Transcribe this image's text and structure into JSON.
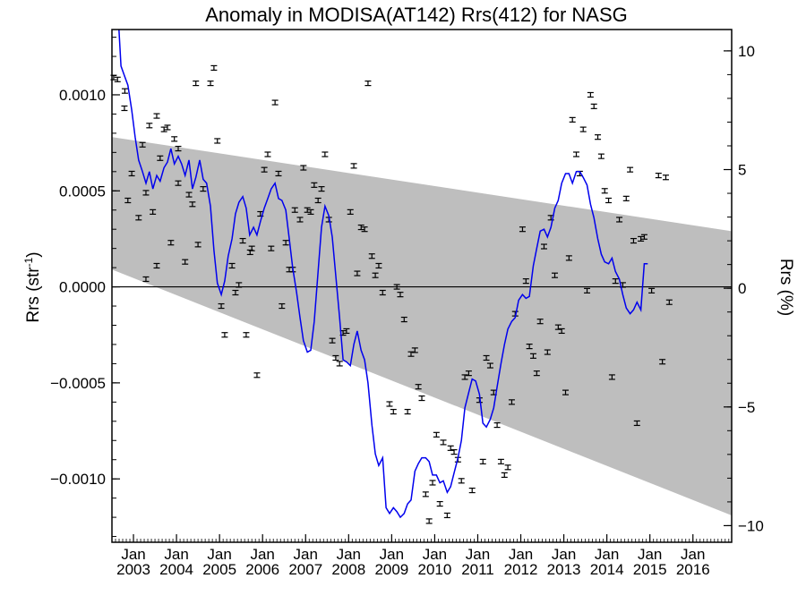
{
  "chart_data": {
    "type": "scatter",
    "title": "Anomaly in MODISA(AT142) Rrs(412) for NASG",
    "ylabel_left": "Rrs (str",
    "ylabel_left_sup": "-1",
    "ylabel_left_close": ")",
    "ylabel_right": "Rrs (%)",
    "x_range": [
      2002.5,
      2016.9
    ],
    "y_range": [
      -0.00133,
      0.00134
    ],
    "y_right_range": [
      -10.7,
      10.9
    ],
    "y_ticks": [
      {
        "value": 0.001,
        "label": "0.0010"
      },
      {
        "value": 0.0005,
        "label": "0.0005"
      },
      {
        "value": 0.0,
        "label": "0.0000"
      },
      {
        "value": -0.0005,
        "label": "−0.0005"
      },
      {
        "value": -0.001,
        "label": "−0.0010"
      }
    ],
    "y_right_ticks": [
      {
        "value": 10,
        "label": "10"
      },
      {
        "value": 5,
        "label": "5"
      },
      {
        "value": 0,
        "label": "0"
      },
      {
        "value": -5,
        "label": "−5"
      },
      {
        "value": -10,
        "label": "−10"
      }
    ],
    "x_major_ticks": [
      {
        "value": 2003,
        "month": "Jan",
        "year": "2003"
      },
      {
        "value": 2004,
        "month": "Jan",
        "year": "2004"
      },
      {
        "value": 2005,
        "month": "Jan",
        "year": "2005"
      },
      {
        "value": 2006,
        "month": "Jan",
        "year": "2006"
      },
      {
        "value": 2007,
        "month": "Jan",
        "year": "2007"
      },
      {
        "value": 2008,
        "month": "Jan",
        "year": "2008"
      },
      {
        "value": 2009,
        "month": "Jan",
        "year": "2009"
      },
      {
        "value": 2010,
        "month": "Jan",
        "year": "2010"
      },
      {
        "value": 2011,
        "month": "Jan",
        "year": "2011"
      },
      {
        "value": 2012,
        "month": "Jan",
        "year": "2012"
      },
      {
        "value": 2013,
        "month": "Jan",
        "year": "2013"
      },
      {
        "value": 2014,
        "month": "Jan",
        "year": "2014"
      },
      {
        "value": 2015,
        "month": "Jan",
        "year": "2015"
      },
      {
        "value": 2016,
        "month": "Jan",
        "year": "2016"
      }
    ],
    "band": {
      "upper": [
        [
          2002.5,
          0.00078
        ],
        [
          2016.9,
          0.00029
        ]
      ],
      "lower": [
        [
          2002.5,
          9e-05
        ],
        [
          2016.9,
          -0.00119
        ]
      ]
    },
    "zero_line": 0,
    "points": [
      [
        2002.54,
        0.00109
      ],
      [
        2002.63,
        0.00108
      ],
      [
        2002.79,
        0.00093
      ],
      [
        2002.8,
        0.00102
      ],
      [
        2002.87,
        0.00045
      ],
      [
        2002.96,
        0.00059
      ],
      [
        2003.12,
        0.00036
      ],
      [
        2003.21,
        0.00074
      ],
      [
        2003.29,
        0.00049
      ],
      [
        2003.29,
        4e-05
      ],
      [
        2003.37,
        0.00084
      ],
      [
        2003.45,
        0.00039
      ],
      [
        2003.54,
        0.00089
      ],
      [
        2003.54,
        0.00011
      ],
      [
        2003.62,
        0.00067
      ],
      [
        2003.71,
        0.00082
      ],
      [
        2003.79,
        0.00083
      ],
      [
        2003.87,
        0.00023
      ],
      [
        2003.95,
        0.00077
      ],
      [
        2004.04,
        0.00072
      ],
      [
        2004.04,
        0.00054
      ],
      [
        2004.2,
        0.00013
      ],
      [
        2004.29,
        0.00048
      ],
      [
        2004.37,
        0.00043
      ],
      [
        2004.45,
        0.00106
      ],
      [
        2004.5,
        0.00022
      ],
      [
        2004.62,
        0.00051
      ],
      [
        2004.79,
        0.00106
      ],
      [
        2004.87,
        0.00114
      ],
      [
        2004.95,
        0.00076
      ],
      [
        2005.04,
        -0.0001
      ],
      [
        2005.12,
        -0.00025
      ],
      [
        2005.29,
        0.00011
      ],
      [
        2005.37,
        -3e-05
      ],
      [
        2005.45,
        1e-05
      ],
      [
        2005.54,
        0.00024
      ],
      [
        2005.62,
        -0.00025
      ],
      [
        2005.71,
        0.00018
      ],
      [
        2005.75,
        0.0002
      ],
      [
        2005.87,
        -0.00046
      ],
      [
        2005.95,
        0.00038
      ],
      [
        2006.04,
        0.00061
      ],
      [
        2006.12,
        0.00069
      ],
      [
        2006.2,
        0.0002
      ],
      [
        2006.29,
        0.00096
      ],
      [
        2006.37,
        0.00059
      ],
      [
        2006.45,
        -0.0001
      ],
      [
        2006.54,
        0.00023
      ],
      [
        2006.62,
        9e-05
      ],
      [
        2006.7,
        9e-05
      ],
      [
        2006.75,
        0.0004
      ],
      [
        2006.87,
        0.00035
      ],
      [
        2006.95,
        0.00062
      ],
      [
        2007.04,
        0.0004
      ],
      [
        2007.12,
        0.00039
      ],
      [
        2007.2,
        0.00053
      ],
      [
        2007.29,
        0.00045
      ],
      [
        2007.37,
        0.00051
      ],
      [
        2007.45,
        0.00069
      ],
      [
        2007.54,
        0.00035
      ],
      [
        2007.62,
        -0.00028
      ],
      [
        2007.7,
        -0.00037
      ],
      [
        2007.79,
        -0.0004
      ],
      [
        2007.87,
        -0.00024
      ],
      [
        2007.95,
        -0.00023
      ],
      [
        2008.04,
        0.00039
      ],
      [
        2008.12,
        0.00063
      ],
      [
        2008.2,
        7e-05
      ],
      [
        2008.29,
        0.00031
      ],
      [
        2008.37,
        0.0003
      ],
      [
        2008.45,
        0.00106
      ],
      [
        2008.54,
        0.00016
      ],
      [
        2008.62,
        6e-05
      ],
      [
        2008.7,
        0.00011
      ],
      [
        2008.79,
        -3e-05
      ],
      [
        2008.95,
        -0.00061
      ],
      [
        2009.04,
        -0.00065
      ],
      [
        2009.12,
        0.0
      ],
      [
        2009.2,
        -4e-05
      ],
      [
        2009.29,
        -0.00017
      ],
      [
        2009.37,
        -0.00065
      ],
      [
        2009.45,
        -0.00035
      ],
      [
        2009.54,
        -0.00033
      ],
      [
        2009.62,
        -0.00052
      ],
      [
        2009.7,
        -0.00058
      ],
      [
        2009.79,
        -0.00108
      ],
      [
        2009.87,
        -0.00122
      ],
      [
        2009.95,
        -0.00102
      ],
      [
        2010.04,
        -0.00077
      ],
      [
        2010.12,
        -0.00113
      ],
      [
        2010.2,
        -0.00081
      ],
      [
        2010.29,
        -0.00119
      ],
      [
        2010.37,
        -0.00084
      ],
      [
        2010.45,
        -0.00086
      ],
      [
        2010.54,
        -0.0009
      ],
      [
        2010.62,
        -0.00101
      ],
      [
        2010.7,
        -0.00047
      ],
      [
        2010.79,
        -0.00045
      ],
      [
        2010.87,
        -0.00106
      ],
      [
        2011.04,
        -0.00059
      ],
      [
        2011.12,
        -0.00091
      ],
      [
        2011.2,
        -0.00037
      ],
      [
        2011.29,
        -0.00041
      ],
      [
        2011.37,
        -0.00055
      ],
      [
        2011.45,
        -0.00072
      ],
      [
        2011.54,
        -0.00091
      ],
      [
        2011.62,
        -0.00098
      ],
      [
        2011.7,
        -0.00094
      ],
      [
        2011.79,
        -0.0006
      ],
      [
        2011.87,
        -0.00014
      ],
      [
        2012.04,
        0.0003
      ],
      [
        2012.12,
        3e-05
      ],
      [
        2012.2,
        -0.00031
      ],
      [
        2012.29,
        -0.00036
      ],
      [
        2012.37,
        -0.00045
      ],
      [
        2012.45,
        -0.00018
      ],
      [
        2012.54,
        0.00021
      ],
      [
        2012.62,
        -0.00034
      ],
      [
        2012.7,
        0.00036
      ],
      [
        2012.79,
        6e-05
      ],
      [
        2012.87,
        -0.00021
      ],
      [
        2012.95,
        -0.00023
      ],
      [
        2013.04,
        -0.00055
      ],
      [
        2013.12,
        0.00015
      ],
      [
        2013.2,
        0.00087
      ],
      [
        2013.29,
        0.00069
      ],
      [
        2013.37,
        0.00059
      ],
      [
        2013.45,
        0.00082
      ],
      [
        2013.54,
        -2e-05
      ],
      [
        2013.62,
        0.001
      ],
      [
        2013.7,
        0.00094
      ],
      [
        2013.79,
        0.00078
      ],
      [
        2013.87,
        0.00068
      ],
      [
        2013.95,
        0.0005
      ],
      [
        2014.04,
        0.00045
      ],
      [
        2014.12,
        -0.00047
      ],
      [
        2014.2,
        3e-05
      ],
      [
        2014.29,
        0.00035
      ],
      [
        2014.37,
        1e-05
      ],
      [
        2014.45,
        0.00046
      ],
      [
        2014.54,
        0.00061
      ],
      [
        2014.62,
        0.00024
      ],
      [
        2014.7,
        -0.00071
      ],
      [
        2014.79,
        0.00025
      ],
      [
        2014.87,
        0.00026
      ],
      [
        2015.04,
        -2e-05
      ],
      [
        2015.2,
        0.00058
      ],
      [
        2015.29,
        -0.00039
      ],
      [
        2015.37,
        0.00057
      ],
      [
        2015.45,
        -8e-05
      ]
    ],
    "line_color": "#0000ee",
    "band_color": "#bebebe",
    "line": [
      [
        2002.66,
        0.00135
      ],
      [
        2002.71,
        0.00115
      ],
      [
        2002.79,
        0.0011
      ],
      [
        2002.87,
        0.00105
      ],
      [
        2002.96,
        0.00092
      ],
      [
        2003.04,
        0.00078
      ],
      [
        2003.12,
        0.00066
      ],
      [
        2003.21,
        0.0006
      ],
      [
        2003.29,
        0.00054
      ],
      [
        2003.37,
        0.0006
      ],
      [
        2003.45,
        0.00051
      ],
      [
        2003.54,
        0.00058
      ],
      [
        2003.62,
        0.00055
      ],
      [
        2003.71,
        0.00062
      ],
      [
        2003.79,
        0.00065
      ],
      [
        2003.87,
        0.00072
      ],
      [
        2003.95,
        0.00064
      ],
      [
        2004.04,
        0.00068
      ],
      [
        2004.12,
        0.00064
      ],
      [
        2004.2,
        0.00058
      ],
      [
        2004.29,
        0.00066
      ],
      [
        2004.37,
        0.00051
      ],
      [
        2004.45,
        0.00057
      ],
      [
        2004.54,
        0.00066
      ],
      [
        2004.62,
        0.00056
      ],
      [
        2004.7,
        0.00054
      ],
      [
        2004.79,
        0.00042
      ],
      [
        2004.87,
        0.00019
      ],
      [
        2004.95,
        2e-05
      ],
      [
        2005.04,
        -4e-05
      ],
      [
        2005.12,
        3e-05
      ],
      [
        2005.2,
        0.00016
      ],
      [
        2005.29,
        0.00025
      ],
      [
        2005.37,
        0.00038
      ],
      [
        2005.45,
        0.00044
      ],
      [
        2005.54,
        0.00047
      ],
      [
        2005.62,
        0.00041
      ],
      [
        2005.7,
        0.00027
      ],
      [
        2005.79,
        0.00031
      ],
      [
        2005.87,
        0.00027
      ],
      [
        2005.95,
        0.00034
      ],
      [
        2006.04,
        0.00041
      ],
      [
        2006.12,
        0.00046
      ],
      [
        2006.2,
        0.00051
      ],
      [
        2006.29,
        0.00054
      ],
      [
        2006.37,
        0.00046
      ],
      [
        2006.45,
        0.00045
      ],
      [
        2006.54,
        0.0004
      ],
      [
        2006.62,
        0.00025
      ],
      [
        2006.7,
        0.0001
      ],
      [
        2006.79,
        -3e-05
      ],
      [
        2006.87,
        -0.00016
      ],
      [
        2006.95,
        -0.00028
      ],
      [
        2007.04,
        -0.00034
      ],
      [
        2007.12,
        -0.00033
      ],
      [
        2007.2,
        -0.00018
      ],
      [
        2007.29,
        8e-05
      ],
      [
        2007.37,
        0.00031
      ],
      [
        2007.45,
        0.00042
      ],
      [
        2007.54,
        0.00037
      ],
      [
        2007.62,
        0.00026
      ],
      [
        2007.7,
        6e-05
      ],
      [
        2007.79,
        -0.00016
      ],
      [
        2007.87,
        -0.00038
      ],
      [
        2007.95,
        -0.00039
      ],
      [
        2008.04,
        -0.00041
      ],
      [
        2008.12,
        -0.0003
      ],
      [
        2008.2,
        -0.00023
      ],
      [
        2008.29,
        -0.00033
      ],
      [
        2008.37,
        -0.00038
      ],
      [
        2008.45,
        -0.0005
      ],
      [
        2008.54,
        -0.00072
      ],
      [
        2008.62,
        -0.00087
      ],
      [
        2008.7,
        -0.00093
      ],
      [
        2008.79,
        -0.00089
      ],
      [
        2008.87,
        -0.00115
      ],
      [
        2008.95,
        -0.00118
      ],
      [
        2009.04,
        -0.00115
      ],
      [
        2009.12,
        -0.00117
      ],
      [
        2009.2,
        -0.0012
      ],
      [
        2009.29,
        -0.00118
      ],
      [
        2009.37,
        -0.00113
      ],
      [
        2009.45,
        -0.00111
      ],
      [
        2009.54,
        -0.00096
      ],
      [
        2009.62,
        -0.00092
      ],
      [
        2009.7,
        -0.00089
      ],
      [
        2009.79,
        -0.00089
      ],
      [
        2009.87,
        -0.00091
      ],
      [
        2009.95,
        -0.00098
      ],
      [
        2010.04,
        -0.00098
      ],
      [
        2010.12,
        -0.00102
      ],
      [
        2010.2,
        -0.00101
      ],
      [
        2010.29,
        -0.00107
      ],
      [
        2010.37,
        -0.00104
      ],
      [
        2010.45,
        -0.00097
      ],
      [
        2010.54,
        -0.00089
      ],
      [
        2010.62,
        -0.0008
      ],
      [
        2010.7,
        -0.00063
      ],
      [
        2010.79,
        -0.00055
      ],
      [
        2010.87,
        -0.00048
      ],
      [
        2010.95,
        -0.00049
      ],
      [
        2011.04,
        -0.00056
      ],
      [
        2011.12,
        -0.00071
      ],
      [
        2011.2,
        -0.00073
      ],
      [
        2011.29,
        -0.00069
      ],
      [
        2011.37,
        -0.00063
      ],
      [
        2011.45,
        -0.00052
      ],
      [
        2011.54,
        -0.0004
      ],
      [
        2011.62,
        -0.0003
      ],
      [
        2011.7,
        -0.00022
      ],
      [
        2011.79,
        -0.00018
      ],
      [
        2011.87,
        -0.00016
      ],
      [
        2011.95,
        -7e-05
      ],
      [
        2012.04,
        -4e-05
      ],
      [
        2012.12,
        -6e-05
      ],
      [
        2012.2,
        -5e-05
      ],
      [
        2012.29,
        0.00011
      ],
      [
        2012.37,
        0.0002
      ],
      [
        2012.45,
        0.00029
      ],
      [
        2012.54,
        0.0003
      ],
      [
        2012.62,
        0.00026
      ],
      [
        2012.7,
        0.00031
      ],
      [
        2012.79,
        0.00041
      ],
      [
        2012.87,
        0.00045
      ],
      [
        2012.95,
        0.00054
      ],
      [
        2013.04,
        0.00059
      ],
      [
        2013.12,
        0.00059
      ],
      [
        2013.2,
        0.00054
      ],
      [
        2013.29,
        0.0006
      ],
      [
        2013.37,
        0.0006
      ],
      [
        2013.45,
        0.00057
      ],
      [
        2013.54,
        0.00053
      ],
      [
        2013.62,
        0.00043
      ],
      [
        2013.7,
        0.00036
      ],
      [
        2013.79,
        0.00025
      ],
      [
        2013.87,
        0.00017
      ],
      [
        2013.95,
        0.00013
      ],
      [
        2014.04,
        0.00012
      ],
      [
        2014.12,
        0.00015
      ],
      [
        2014.2,
        8e-05
      ],
      [
        2014.29,
        4e-05
      ],
      [
        2014.37,
        -4e-05
      ],
      [
        2014.45,
        -0.00011
      ],
      [
        2014.54,
        -0.00014
      ],
      [
        2014.62,
        -0.00012
      ],
      [
        2014.7,
        -8e-05
      ],
      [
        2014.79,
        -0.00012
      ],
      [
        2014.87,
        0.00012
      ],
      [
        2014.95,
        0.00012
      ]
    ]
  }
}
